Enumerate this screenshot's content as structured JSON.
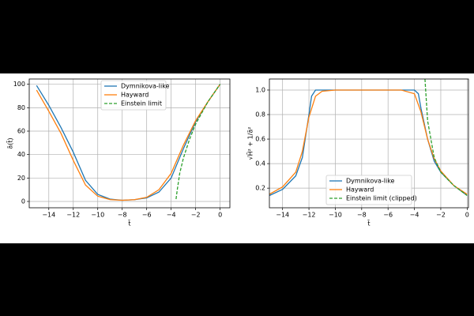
{
  "chart_data": [
    {
      "type": "line",
      "xlabel": "t̄",
      "ylabel": "ā(t̄)",
      "xlim": [
        -15.6,
        0.8
      ],
      "ylim": [
        -5.4,
        104.5
      ],
      "xticks": [
        {
          "value": -14,
          "label": "−14"
        },
        {
          "value": -12,
          "label": "−12"
        },
        {
          "value": -10,
          "label": "−10"
        },
        {
          "value": -8,
          "label": "−8"
        },
        {
          "value": -6,
          "label": "−6"
        },
        {
          "value": -4,
          "label": "−4"
        },
        {
          "value": -2,
          "label": "−2"
        },
        0
      ],
      "yticks": [
        0,
        20,
        40,
        60,
        80,
        100
      ],
      "grid": true,
      "legend": "upper center",
      "series": [
        {
          "name": "Dymnikova-like",
          "color": "#1f77b4",
          "x": [
            -15,
            -14,
            -13,
            -12,
            -11,
            -10,
            -9,
            -8,
            -7,
            -6,
            -5,
            -4,
            -3,
            -2,
            -1,
            0
          ],
          "values": [
            99,
            82,
            63,
            42,
            18,
            6,
            2,
            1,
            1.5,
            3,
            8,
            20,
            45,
            68,
            85,
            100
          ]
        },
        {
          "name": "Hayward",
          "color": "#ff7f0e",
          "x": [
            -15,
            -14,
            -13,
            -12,
            -11,
            -10,
            -9,
            -8,
            -7,
            -6,
            -5,
            -4,
            -3,
            -2,
            -1,
            0
          ],
          "values": [
            95,
            77,
            58,
            35,
            14,
            4.5,
            1.6,
            1,
            1.5,
            3.5,
            10,
            24,
            48,
            69,
            85,
            100
          ]
        },
        {
          "name": "Einstein limit",
          "color": "#2ca02c",
          "dashed": true,
          "x": [
            -3.6,
            -3.5,
            -3.3,
            -3,
            -2.5,
            -2,
            -1,
            0
          ],
          "values": [
            2,
            10,
            24,
            37,
            53,
            66,
            85,
            100
          ]
        }
      ]
    },
    {
      "type": "line",
      "xlabel": "t̄",
      "ylabel": "√H̄² + 1/ā²",
      "xlim": [
        -15,
        0.1
      ],
      "ylim": [
        0.04,
        1.09
      ],
      "xticks": [
        {
          "value": -14,
          "label": "−14"
        },
        {
          "value": -12,
          "label": "−12"
        },
        {
          "value": -10,
          "label": "−10"
        },
        {
          "value": -8,
          "label": "−8"
        },
        {
          "value": -6,
          "label": "−6"
        },
        {
          "value": -4,
          "label": "−4"
        },
        {
          "value": -2,
          "label": "−2"
        },
        0
      ],
      "yticks": [
        0.2,
        0.4,
        0.6,
        0.8,
        {
          "value": 1,
          "label": "1.0"
        }
      ],
      "grid": true,
      "legend": "lower center",
      "series": [
        {
          "name": "Dymnikova-like",
          "color": "#1f77b4",
          "x": [
            -15,
            -14,
            -13,
            -12.5,
            -12,
            -11.8,
            -11.5,
            -10,
            -8,
            -6,
            -4,
            -3.7,
            -3.5,
            -3,
            -2.5,
            -2,
            -1,
            0
          ],
          "values": [
            0.14,
            0.19,
            0.3,
            0.45,
            0.8,
            0.95,
            1,
            1,
            1,
            1,
            1,
            0.97,
            0.85,
            0.6,
            0.42,
            0.33,
            0.22,
            0.14
          ]
        },
        {
          "name": "Hayward",
          "color": "#ff7f0e",
          "x": [
            -15,
            -14,
            -13,
            -12.5,
            -12,
            -11.5,
            -11,
            -10,
            -8,
            -6,
            -5,
            -4,
            -3.5,
            -3,
            -2.5,
            -2,
            -1,
            0
          ],
          "values": [
            0.15,
            0.21,
            0.33,
            0.5,
            0.78,
            0.95,
            0.99,
            1,
            1,
            1,
            1,
            0.97,
            0.82,
            0.6,
            0.44,
            0.34,
            0.22,
            0.15
          ]
        },
        {
          "name": "Einstein limit (clipped)",
          "color": "#2ca02c",
          "dashed": true,
          "x": [
            -3.2,
            -3,
            -2.5,
            -2,
            -1,
            0
          ],
          "values": [
            1.09,
            0.75,
            0.45,
            0.33,
            0.22,
            0.14
          ]
        }
      ]
    }
  ]
}
